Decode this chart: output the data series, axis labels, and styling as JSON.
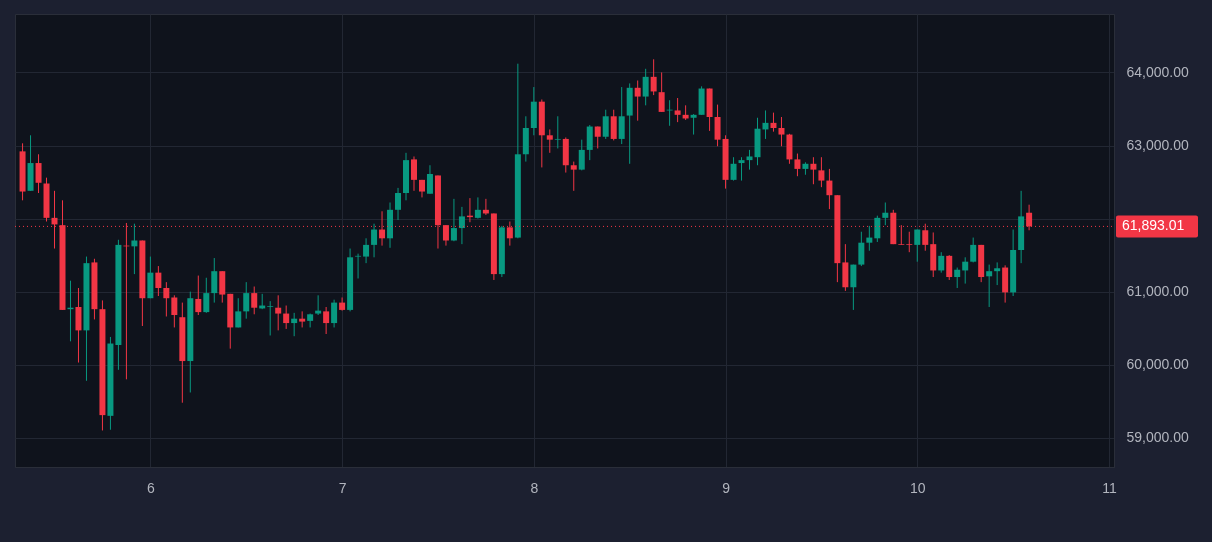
{
  "chart_data": {
    "type": "candlestick",
    "x": [
      5.3333,
      5.375,
      5.4167,
      5.4583,
      5.5,
      5.5417,
      5.5833,
      5.625,
      5.6667,
      5.7083,
      5.75,
      5.7917,
      5.8333,
      5.875,
      5.9167,
      5.9583,
      6,
      6.0417,
      6.0833,
      6.125,
      6.1667,
      6.2083,
      6.25,
      6.2917,
      6.3333,
      6.375,
      6.4167,
      6.4583,
      6.5,
      6.5417,
      6.5833,
      6.625,
      6.6667,
      6.7083,
      6.75,
      6.7917,
      6.8333,
      6.875,
      6.9167,
      6.9583,
      7,
      7.0417,
      7.0833,
      7.125,
      7.1667,
      7.2083,
      7.25,
      7.2917,
      7.3333,
      7.375,
      7.4167,
      7.4583,
      7.5,
      7.5417,
      7.5833,
      7.625,
      7.6667,
      7.7083,
      7.75,
      7.7917,
      7.8333,
      7.875,
      7.9167,
      7.9583,
      8,
      8.0417,
      8.0833,
      8.125,
      8.1667,
      8.2083,
      8.25,
      8.2917,
      8.3333,
      8.375,
      8.4167,
      8.4583,
      8.5,
      8.5417,
      8.5833,
      8.625,
      8.6667,
      8.7083,
      8.75,
      8.7917,
      8.8333,
      8.875,
      8.9167,
      8.9583,
      9,
      9.0417,
      9.0833,
      9.125,
      9.1667,
      9.2083,
      9.25,
      9.2917,
      9.3333,
      9.375,
      9.4167,
      9.4583,
      9.5,
      9.5417,
      9.5833,
      9.625,
      9.6667,
      9.7083,
      9.75,
      9.7917,
      9.8333,
      9.875,
      9.9167,
      9.9583,
      10,
      10.0417,
      10.0833,
      10.125,
      10.1667,
      10.2083,
      10.25,
      10.2917,
      10.3333,
      10.375,
      10.4167,
      10.4583,
      10.5,
      10.5417,
      10.5833
    ],
    "ohlc": [
      [
        62920,
        63030,
        62250,
        62370
      ],
      [
        62380,
        63140,
        62380,
        62760
      ],
      [
        62760,
        62880,
        62350,
        62490
      ],
      [
        62480,
        62560,
        61960,
        62010
      ],
      [
        62010,
        62380,
        61590,
        61920
      ],
      [
        61910,
        62250,
        60750,
        60750
      ],
      [
        60760,
        61150,
        60320,
        60780
      ],
      [
        60790,
        61050,
        60030,
        60470
      ],
      [
        60470,
        61480,
        59780,
        61390
      ],
      [
        61400,
        61450,
        60620,
        60760
      ],
      [
        60760,
        60880,
        59100,
        59310
      ],
      [
        59300,
        60380,
        59110,
        60290
      ],
      [
        60270,
        61710,
        59930,
        61640
      ],
      [
        61630,
        61940,
        59800,
        61620
      ],
      [
        61620,
        61930,
        61240,
        61700
      ],
      [
        61700,
        61700,
        60530,
        60910
      ],
      [
        60910,
        61480,
        60910,
        61260
      ],
      [
        61260,
        61350,
        60940,
        61050
      ],
      [
        61050,
        61130,
        60660,
        60910
      ],
      [
        60920,
        60950,
        60510,
        60680
      ],
      [
        60650,
        60850,
        59480,
        60050
      ],
      [
        60050,
        61000,
        59620,
        60910
      ],
      [
        60900,
        61220,
        60680,
        60720
      ],
      [
        60720,
        61190,
        60710,
        60980
      ],
      [
        60980,
        61460,
        60850,
        61280
      ],
      [
        61280,
        61280,
        60850,
        60960
      ],
      [
        60970,
        60970,
        60220,
        60510
      ],
      [
        60510,
        60910,
        60510,
        60730
      ],
      [
        60730,
        61130,
        60630,
        60980
      ],
      [
        60980,
        61070,
        60690,
        60780
      ],
      [
        60770,
        60970,
        60760,
        60810
      ],
      [
        60790,
        60870,
        60400,
        60800
      ],
      [
        60780,
        60950,
        60470,
        60700
      ],
      [
        60700,
        60810,
        60490,
        60570
      ],
      [
        60570,
        60710,
        60390,
        60630
      ],
      [
        60630,
        60730,
        60510,
        60590
      ],
      [
        60600,
        60700,
        60510,
        60690
      ],
      [
        60700,
        60950,
        60680,
        60740
      ],
      [
        60730,
        60790,
        60420,
        60570
      ],
      [
        60570,
        60890,
        60510,
        60850
      ],
      [
        60850,
        60920,
        60740,
        60750
      ],
      [
        60750,
        61590,
        60730,
        61470
      ],
      [
        61480,
        61520,
        61180,
        61490
      ],
      [
        61480,
        61730,
        61390,
        61640
      ],
      [
        61640,
        61930,
        61470,
        61850
      ],
      [
        61850,
        62100,
        61630,
        61730
      ],
      [
        61730,
        62220,
        61600,
        62120
      ],
      [
        62120,
        62420,
        61980,
        62350
      ],
      [
        62350,
        62900,
        62250,
        62800
      ],
      [
        62810,
        62850,
        62380,
        62530
      ],
      [
        62530,
        62530,
        62290,
        62370
      ],
      [
        62340,
        62730,
        62340,
        62610
      ],
      [
        62590,
        62590,
        61590,
        61910
      ],
      [
        61910,
        61910,
        61630,
        61700
      ],
      [
        61700,
        62270,
        61690,
        61870
      ],
      [
        61870,
        62160,
        61650,
        62030
      ],
      [
        62040,
        62280,
        61950,
        62020
      ],
      [
        62010,
        62290,
        62000,
        62120
      ],
      [
        62120,
        62270,
        62050,
        62070
      ],
      [
        62070,
        62070,
        61160,
        61240
      ],
      [
        61240,
        61900,
        61200,
        61880
      ],
      [
        61880,
        61960,
        61630,
        61730
      ],
      [
        61740,
        64120,
        61730,
        62880
      ],
      [
        62880,
        63400,
        62780,
        63240
      ],
      [
        63240,
        63800,
        63140,
        63600
      ],
      [
        63600,
        63630,
        62700,
        63140
      ],
      [
        63140,
        63220,
        62900,
        63080
      ],
      [
        63080,
        63400,
        62960,
        63090
      ],
      [
        63090,
        63110,
        62630,
        62730
      ],
      [
        62730,
        62780,
        62380,
        62670
      ],
      [
        62670,
        63080,
        62660,
        62940
      ],
      [
        62940,
        63280,
        62800,
        63260
      ],
      [
        63260,
        63260,
        62960,
        63120
      ],
      [
        63120,
        63490,
        63090,
        63400
      ],
      [
        63400,
        63490,
        63070,
        63090
      ],
      [
        63090,
        63800,
        63020,
        63400
      ],
      [
        63410,
        63850,
        62750,
        63790
      ],
      [
        63790,
        63890,
        63340,
        63670
      ],
      [
        63670,
        64050,
        63550,
        63940
      ],
      [
        63940,
        64180,
        63690,
        63740
      ],
      [
        63730,
        64000,
        63460,
        63460
      ],
      [
        63480,
        63620,
        63270,
        63490
      ],
      [
        63480,
        63650,
        63320,
        63420
      ],
      [
        63420,
        63550,
        63350,
        63370
      ],
      [
        63380,
        63430,
        63150,
        63420
      ],
      [
        63420,
        63810,
        63420,
        63780
      ],
      [
        63780,
        63780,
        63200,
        63390
      ],
      [
        63390,
        63560,
        62990,
        63080
      ],
      [
        63090,
        63140,
        62410,
        62530
      ],
      [
        62530,
        62840,
        62520,
        62750
      ],
      [
        62760,
        62840,
        62520,
        62800
      ],
      [
        62800,
        62940,
        62670,
        62850
      ],
      [
        62840,
        63380,
        62730,
        63230
      ],
      [
        63220,
        63480,
        63090,
        63310
      ],
      [
        63310,
        63450,
        63190,
        63240
      ],
      [
        63240,
        63390,
        62990,
        63150
      ],
      [
        63150,
        63160,
        62750,
        62810
      ],
      [
        62810,
        62890,
        62580,
        62680
      ],
      [
        62680,
        62770,
        62600,
        62750
      ],
      [
        62750,
        62840,
        62470,
        62670
      ],
      [
        62660,
        62840,
        62430,
        62520
      ],
      [
        62520,
        62680,
        62130,
        62320
      ],
      [
        62320,
        62320,
        61130,
        61390
      ],
      [
        61400,
        61650,
        61010,
        61060
      ],
      [
        61060,
        61370,
        60750,
        61370
      ],
      [
        61370,
        61820,
        61350,
        61670
      ],
      [
        61670,
        61900,
        61560,
        61740
      ],
      [
        61730,
        62040,
        61680,
        62010
      ],
      [
        62010,
        62220,
        61910,
        62080
      ],
      [
        62080,
        62120,
        61650,
        61650
      ],
      [
        61650,
        61910,
        61640,
        61640
      ],
      [
        61650,
        61820,
        61540,
        61640
      ],
      [
        61640,
        61850,
        61410,
        61850
      ],
      [
        61840,
        61930,
        61560,
        61640
      ],
      [
        61650,
        61810,
        61200,
        61290
      ],
      [
        61290,
        61540,
        61260,
        61490
      ],
      [
        61490,
        61500,
        61160,
        61200
      ],
      [
        61200,
        61330,
        61050,
        61300
      ],
      [
        61290,
        61470,
        61110,
        61410
      ],
      [
        61410,
        61740,
        61400,
        61640
      ],
      [
        61640,
        61640,
        61130,
        61200
      ],
      [
        61210,
        61370,
        60790,
        61280
      ],
      [
        61280,
        61400,
        61090,
        61320
      ],
      [
        61330,
        61360,
        60850,
        60990
      ],
      [
        60990,
        61850,
        60940,
        61570
      ],
      [
        61570,
        62380,
        61390,
        62030
      ],
      [
        62080,
        62190,
        61840,
        61893.01
      ]
    ],
    "colors": [
      "#f23645",
      "#089981",
      "#f23645",
      "#f23645",
      "#f23645",
      "#f23645",
      "#089981",
      "#f23645",
      "#089981",
      "#f23645",
      "#f23645",
      "#089981",
      "#089981",
      "#f23645",
      "#089981",
      "#f23645",
      "#089981",
      "#f23645",
      "#f23645",
      "#f23645",
      "#f23645",
      "#089981",
      "#f23645",
      "#089981",
      "#089981",
      "#f23645",
      "#f23645",
      "#089981",
      "#089981",
      "#f23645",
      "#089981",
      "#089981",
      "#f23645",
      "#f23645",
      "#089981",
      "#f23645",
      "#089981",
      "#089981",
      "#f23645",
      "#089981",
      "#f23645",
      "#089981",
      "#089981",
      "#089981",
      "#089981",
      "#f23645",
      "#089981",
      "#089981",
      "#089981",
      "#f23645",
      "#f23645",
      "#089981",
      "#f23645",
      "#f23645",
      "#089981",
      "#089981",
      "#f23645",
      "#089981",
      "#f23645",
      "#f23645",
      "#089981",
      "#f23645",
      "#089981",
      "#089981",
      "#089981",
      "#f23645",
      "#f23645",
      "#089981",
      "#f23645",
      "#f23645",
      "#089981",
      "#089981",
      "#f23645",
      "#089981",
      "#f23645",
      "#089981",
      "#089981",
      "#f23645",
      "#089981",
      "#f23645",
      "#f23645",
      "#089981",
      "#f23645",
      "#f23645",
      "#089981",
      "#089981",
      "#f23645",
      "#f23645",
      "#f23645",
      "#089981",
      "#089981",
      "#089981",
      "#089981",
      "#089981",
      "#f23645",
      "#f23645",
      "#f23645",
      "#f23645",
      "#089981",
      "#f23645",
      "#f23645",
      "#f23645",
      "#f23645",
      "#f23645",
      "#089981",
      "#089981",
      "#089981",
      "#089981",
      "#089981",
      "#f23645",
      "#f23645",
      "#f23645",
      "#089981",
      "#f23645",
      "#f23645",
      "#089981",
      "#f23645",
      "#089981",
      "#089981",
      "#089981",
      "#f23645",
      "#089981",
      "#089981",
      "#f23645",
      "#089981",
      "#089981",
      "#f23645"
    ],
    "xlim": [
      5.32,
      11
    ],
    "xticks": [
      6,
      7,
      8,
      9,
      10,
      11
    ],
    "ylim": [
      58600,
      64800
    ],
    "yticks": [
      {
        "value": 59000,
        "label": "59,000.00"
      },
      {
        "value": 60000,
        "label": "60,000.00"
      },
      {
        "value": 61000,
        "label": "61,000.00"
      },
      {
        "value": 62000,
        "label": null
      },
      {
        "value": 63000,
        "label": "63,000.00"
      },
      {
        "value": 64000,
        "label": "64,000.00"
      }
    ],
    "ref_lines": [
      {
        "axis": "y",
        "value": 61893.01,
        "label": "61,893.01",
        "color": "#f23645",
        "line_style": "dotted"
      }
    ],
    "grid": true
  }
}
